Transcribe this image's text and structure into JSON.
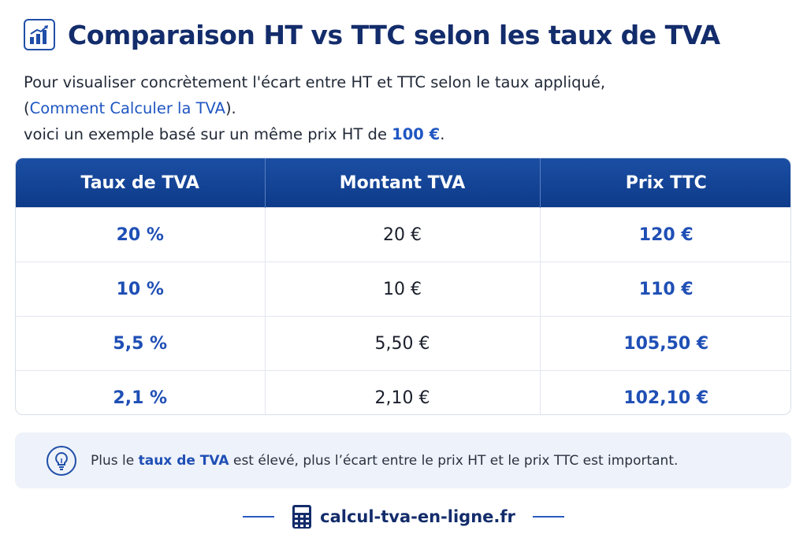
{
  "header": {
    "icon": "bar-chart-icon",
    "title": "Comparaison HT vs TTC selon les taux de TVA"
  },
  "intro": {
    "line1": "Pour visualiser concrètement l'écart entre HT et TTC selon le taux appliqué,",
    "line2_open": "(",
    "link_text": "Comment Calculer la TVA",
    "line2_close": ").",
    "line3_prefix": "voici un exemple basé sur un même prix HT de ",
    "price": "100 €",
    "line3_suffix": "."
  },
  "table": {
    "headers": [
      "Taux de TVA",
      "Montant TVA",
      "Prix TTC"
    ],
    "rows": [
      {
        "rate": "20 %",
        "amount": "20 €",
        "ttc": "120 €"
      },
      {
        "rate": "10 %",
        "amount": "10 €",
        "ttc": "110 €"
      },
      {
        "rate": "5,5 %",
        "amount": "5,50 €",
        "ttc": "105,50 €"
      },
      {
        "rate": "2,1 %",
        "amount": "2,10 €",
        "ttc": "102,10 €"
      }
    ]
  },
  "tip": {
    "icon": "lightbulb-icon",
    "prefix": "Plus le ",
    "highlight": "taux de TVA",
    "suffix": " est élevé, plus l’écart entre le prix HT et le prix TTC est important."
  },
  "footer": {
    "icon": "calculator-icon",
    "site": "calcul-tva-en-ligne.fr"
  },
  "colors": {
    "primary": "#0e3b8a",
    "accent": "#1f4fb5",
    "tip_bg": "#eef2fa"
  }
}
